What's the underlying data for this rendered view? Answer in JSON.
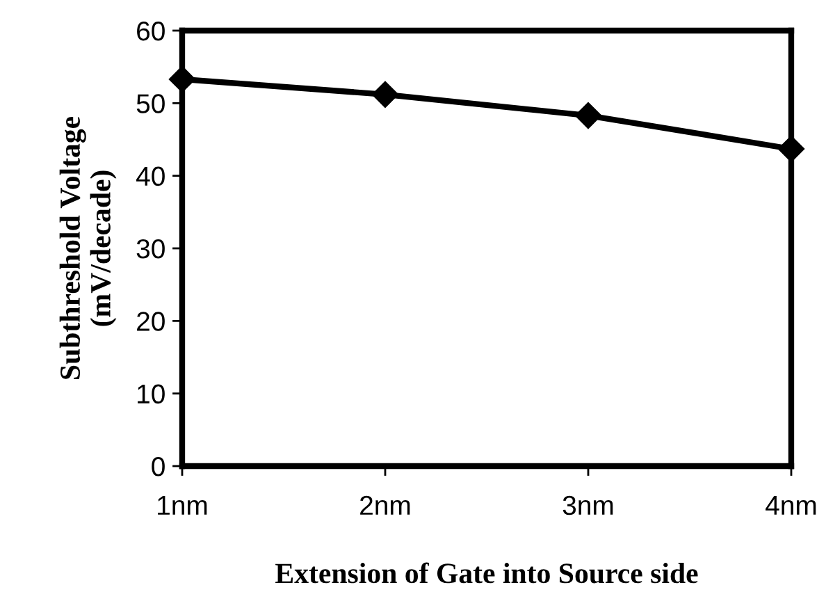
{
  "chart_data": {
    "type": "line",
    "xlabel": "Extension of Gate into Source side",
    "ylabel": "Subthreshold Voltage\n(mV/decade)",
    "categories": [
      "1nm",
      "2nm",
      "3nm",
      "4nm"
    ],
    "series": [
      {
        "color": "#000000",
        "values": [
          53.3,
          51.2,
          48.3,
          43.7
        ]
      }
    ],
    "ylim": [
      0,
      60
    ],
    "yticks": [
      0,
      10,
      20,
      30,
      40,
      50,
      60
    ],
    "marker": "diamond",
    "line_style": "solid"
  }
}
